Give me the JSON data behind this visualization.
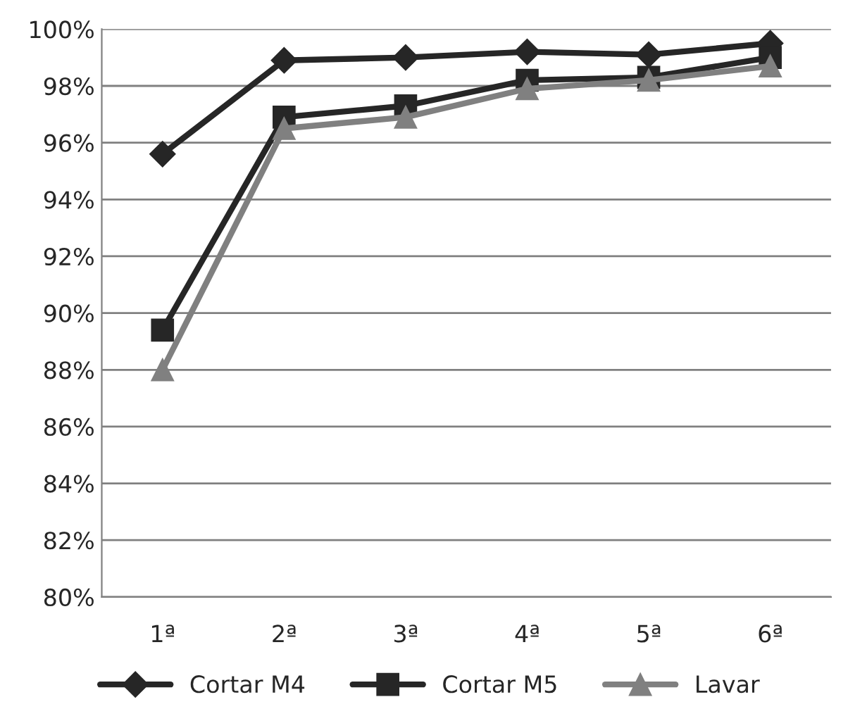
{
  "chart_data": {
    "type": "line",
    "categories": [
      "1ª",
      "2ª",
      "3ª",
      "4ª",
      "5ª",
      "6ª"
    ],
    "series": [
      {
        "name": "Cortar M4",
        "color": "#262626",
        "marker": "diamond",
        "values": [
          95.6,
          98.9,
          99.0,
          99.2,
          99.1,
          99.5
        ]
      },
      {
        "name": "Cortar M5",
        "color": "#262626",
        "marker": "square",
        "values": [
          89.4,
          96.9,
          97.3,
          98.2,
          98.3,
          99.0
        ]
      },
      {
        "name": "Lavar",
        "color": "#808080",
        "marker": "triangle",
        "values": [
          88.0,
          96.5,
          96.9,
          97.9,
          98.2,
          98.7
        ]
      }
    ],
    "ylim": [
      80,
      100
    ],
    "yticks": [
      {
        "value": 80,
        "label": "80%"
      },
      {
        "value": 82,
        "label": "82%"
      },
      {
        "value": 84,
        "label": "84%"
      },
      {
        "value": 86,
        "label": "86%"
      },
      {
        "value": 88,
        "label": "88%"
      },
      {
        "value": 90,
        "label": "90%"
      },
      {
        "value": 92,
        "label": "92%"
      },
      {
        "value": 94,
        "label": "94%"
      },
      {
        "value": 96,
        "label": "96%"
      },
      {
        "value": 98,
        "label": "98%"
      },
      {
        "value": 100,
        "label": "100%"
      }
    ],
    "grid": "y",
    "legend": "bottom",
    "line_style": "solid"
  }
}
